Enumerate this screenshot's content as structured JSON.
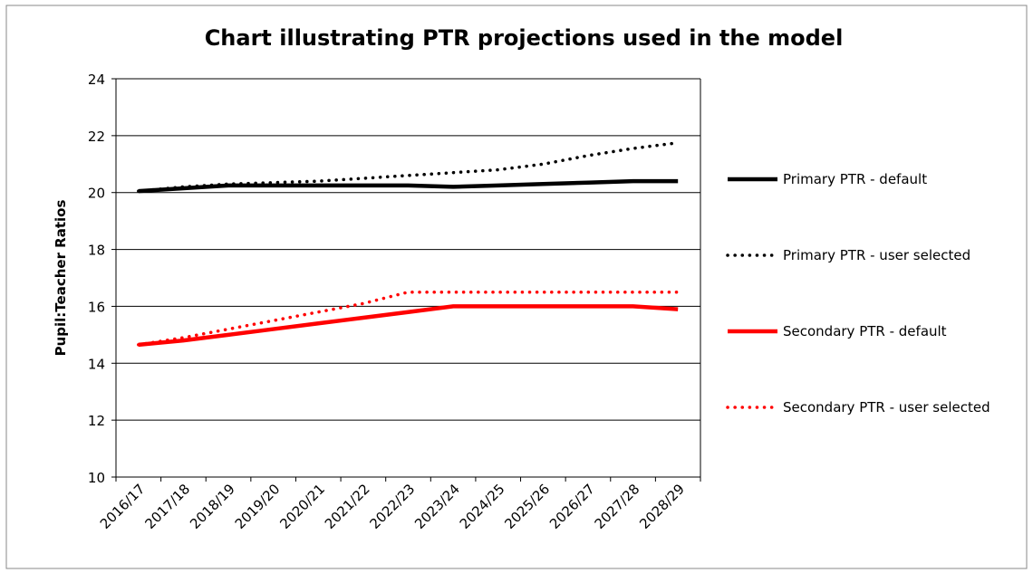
{
  "chart_data": {
    "type": "line",
    "title": "Chart illustrating PTR projections used in the model",
    "y_label": "Pupil:Teacher Ratios",
    "categories": [
      "2016/17",
      "2017/18",
      "2018/19",
      "2019/20",
      "2020/21",
      "2021/22",
      "2022/23",
      "2023/24",
      "2024/25",
      "2025/26",
      "2026/27",
      "2027/28",
      "2028/29"
    ],
    "series": [
      {
        "name": "Primary PTR - default",
        "color": "#000000",
        "style": "solid",
        "values": [
          20.05,
          20.15,
          20.25,
          20.25,
          20.25,
          20.25,
          20.25,
          20.2,
          20.25,
          20.3,
          20.35,
          20.4,
          20.4
        ]
      },
      {
        "name": "Primary PTR - user selected",
        "color": "#000000",
        "style": "dotted",
        "values": [
          20.05,
          20.2,
          20.3,
          20.35,
          20.4,
          20.5,
          20.6,
          20.7,
          20.8,
          21.0,
          21.3,
          21.55,
          21.75
        ]
      },
      {
        "name": "Secondary PTR - default",
        "color": "#ff0000",
        "style": "solid",
        "values": [
          14.65,
          14.8,
          15.0,
          15.2,
          15.4,
          15.6,
          15.8,
          16.0,
          16.0,
          16.0,
          16.0,
          16.0,
          15.9
        ]
      },
      {
        "name": "Secondary PTR - user selected",
        "color": "#ff0000",
        "style": "dotted",
        "values": [
          14.65,
          14.9,
          15.2,
          15.5,
          15.8,
          16.1,
          16.5,
          16.5,
          16.5,
          16.5,
          16.5,
          16.5,
          16.5
        ]
      }
    ],
    "ylim": [
      10,
      24
    ],
    "yticks": [
      10,
      12,
      14,
      16,
      18,
      20,
      22,
      24
    ],
    "grid": true,
    "legend": "right"
  }
}
